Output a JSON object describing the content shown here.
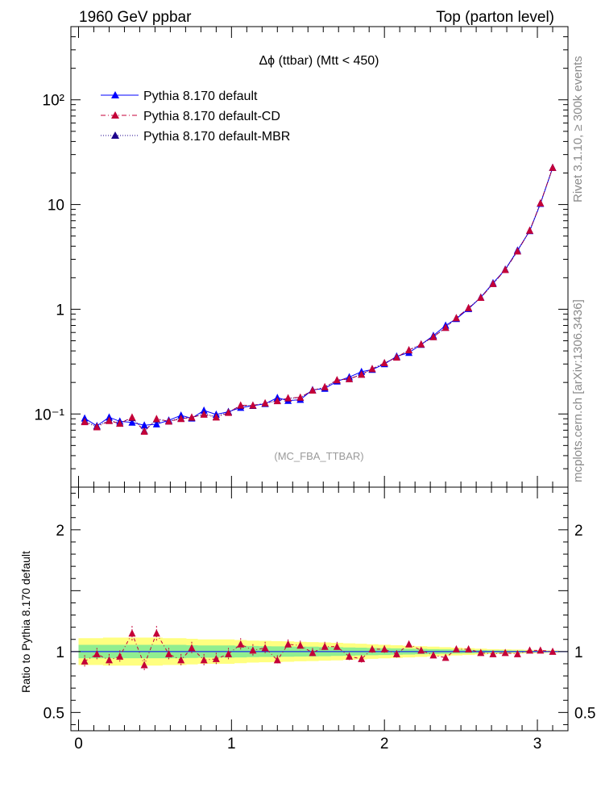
{
  "header": {
    "left": "1960 GeV ppbar",
    "right": "Top (parton level)"
  },
  "side_labels": {
    "rivet": "Rivet 3.1.10, ≥ 300k events",
    "mcplots": "mcplots.cern.ch [arXiv:1306.3436]"
  },
  "colors": {
    "default": "#0000ff",
    "cd": "#c40038",
    "mbr": "#1c008c",
    "band_inner": "#90ee90",
    "band_outer": "#ffff80"
  },
  "chart_data": [
    {
      "type": "line",
      "title": "Δϕ (ttbar) (Mtt < 450)",
      "watermark": "(MC_FBA_TTBAR)",
      "ylog": true,
      "xlim": [
        -0.05,
        3.2
      ],
      "ylim": [
        0.02,
        500
      ],
      "y_ticks": [
        {
          "value": 0.1,
          "label": "10⁻¹"
        },
        {
          "value": 1,
          "label": "1"
        },
        {
          "value": 10,
          "label": "10"
        },
        {
          "value": 100,
          "label": "10²"
        }
      ],
      "legend_position": "top-left",
      "x": [
        0.04,
        0.12,
        0.2,
        0.27,
        0.35,
        0.43,
        0.51,
        0.59,
        0.67,
        0.74,
        0.82,
        0.9,
        0.98,
        1.06,
        1.14,
        1.22,
        1.3,
        1.37,
        1.45,
        1.53,
        1.61,
        1.69,
        1.77,
        1.85,
        1.92,
        2.0,
        2.08,
        2.16,
        2.24,
        2.32,
        2.4,
        2.47,
        2.55,
        2.63,
        2.71,
        2.79,
        2.87,
        2.95,
        3.02,
        3.1
      ],
      "series": [
        {
          "name": "Pythia 8.170 default",
          "style": "solid",
          "values": [
            0.091,
            0.077,
            0.093,
            0.085,
            0.083,
            0.078,
            0.08,
            0.087,
            0.097,
            0.091,
            0.108,
            0.099,
            0.105,
            0.115,
            0.12,
            0.125,
            0.143,
            0.134,
            0.137,
            0.17,
            0.175,
            0.205,
            0.225,
            0.253,
            0.265,
            0.3,
            0.355,
            0.385,
            0.46,
            0.56,
            0.7,
            0.81,
            1.01,
            1.3,
            1.78,
            2.4,
            3.65,
            5.6,
            10.2,
            22.5
          ]
        },
        {
          "name": "Pythia 8.170 default-CD",
          "style": "dashdot",
          "values": [
            0.084,
            0.075,
            0.086,
            0.081,
            0.093,
            0.068,
            0.09,
            0.085,
            0.09,
            0.093,
            0.099,
            0.093,
            0.103,
            0.121,
            0.121,
            0.127,
            0.133,
            0.142,
            0.144,
            0.168,
            0.181,
            0.211,
            0.216,
            0.238,
            0.27,
            0.307,
            0.347,
            0.408,
            0.464,
            0.544,
            0.667,
            0.826,
            1.03,
            1.29,
            1.75,
            2.38,
            3.58,
            5.65,
            10.3,
            22.5
          ]
        },
        {
          "name": "Pythia 8.170 default-MBR",
          "style": "dotted",
          "values": [
            0.085,
            0.076,
            0.087,
            0.082,
            0.092,
            0.069,
            0.089,
            0.085,
            0.091,
            0.092,
            0.1,
            0.094,
            0.104,
            0.12,
            0.12,
            0.126,
            0.134,
            0.141,
            0.143,
            0.168,
            0.18,
            0.21,
            0.217,
            0.239,
            0.269,
            0.306,
            0.348,
            0.406,
            0.462,
            0.545,
            0.669,
            0.823,
            1.028,
            1.292,
            1.752,
            2.382,
            3.585,
            5.645,
            10.28,
            22.48
          ]
        }
      ]
    },
    {
      "type": "line",
      "ylabel": "Ratio to Pythia 8.170 default",
      "xlim": [
        -0.05,
        3.2
      ],
      "ylim": [
        0.35,
        2.35
      ],
      "x_ticks": [
        0,
        1,
        2,
        3
      ],
      "y_ticks": [
        0.5,
        1,
        2
      ],
      "band_inner_halfwidth": [
        0.055,
        0.055,
        0.055,
        0.055,
        0.055,
        0.055,
        0.055,
        0.055,
        0.055,
        0.052,
        0.05,
        0.05,
        0.05,
        0.048,
        0.046,
        0.044,
        0.043,
        0.042,
        0.041,
        0.04,
        0.038,
        0.036,
        0.034,
        0.032,
        0.03,
        0.028,
        0.026,
        0.024,
        0.022,
        0.02,
        0.018,
        0.016,
        0.014,
        0.012,
        0.01,
        0.009,
        0.008,
        0.007,
        0.006,
        0.005
      ],
      "band_outer_halfwidth": [
        0.11,
        0.11,
        0.115,
        0.115,
        0.115,
        0.115,
        0.115,
        0.11,
        0.11,
        0.105,
        0.1,
        0.1,
        0.1,
        0.095,
        0.09,
        0.088,
        0.086,
        0.084,
        0.08,
        0.078,
        0.075,
        0.072,
        0.068,
        0.064,
        0.06,
        0.056,
        0.052,
        0.048,
        0.044,
        0.04,
        0.036,
        0.032,
        0.028,
        0.024,
        0.02,
        0.018,
        0.016,
        0.014,
        0.012,
        0.01
      ],
      "series": [
        {
          "name": "Pythia 8.170 default-CD",
          "values": [
            0.92,
            0.98,
            0.93,
            0.96,
            1.15,
            0.89,
            1.15,
            0.98,
            0.93,
            1.03,
            0.93,
            0.94,
            0.98,
            1.06,
            1.01,
            1.03,
            0.93,
            1.06,
            1.05,
            0.99,
            1.04,
            1.04,
            0.96,
            0.94,
            1.02,
            1.02,
            0.98,
            1.06,
            1.01,
            0.97,
            0.95,
            1.02,
            1.02,
            0.99,
            0.98,
            0.99,
            0.98,
            1.01,
            1.01,
            1.0
          ],
          "errors": [
            0.05,
            0.05,
            0.05,
            0.05,
            0.06,
            0.05,
            0.06,
            0.05,
            0.05,
            0.05,
            0.05,
            0.05,
            0.05,
            0.05,
            0.05,
            0.05,
            0.04,
            0.04,
            0.04,
            0.04,
            0.04,
            0.04,
            0.03,
            0.03,
            0.03,
            0.03,
            0.03,
            0.025,
            0.02,
            0.02,
            0.02,
            0.015,
            0.015,
            0.012,
            0.01,
            0.01,
            0.01,
            0.008,
            0.006,
            0.005
          ]
        }
      ]
    }
  ]
}
